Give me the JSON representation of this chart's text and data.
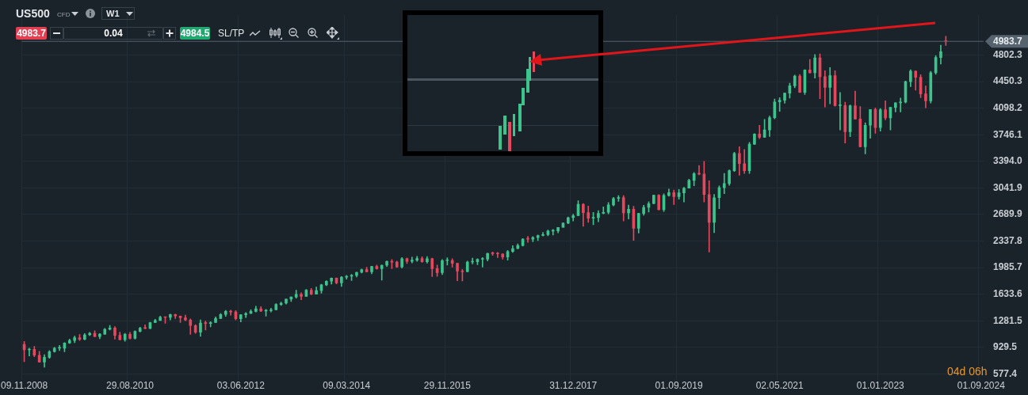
{
  "chart_data": {
    "type": "candlestick",
    "title": "US500",
    "subtitle": "CFD",
    "annotations": [
      "W1",
      "4983.7",
      "0.04",
      "4984.5",
      "SL/TP",
      "04d 06h"
    ],
    "categories": [
      "09.11.2008",
      null,
      null,
      null,
      null,
      null,
      null,
      null,
      null,
      null,
      null,
      null,
      null,
      null,
      null,
      null,
      null,
      null,
      null,
      null,
      null,
      "29.08.2010",
      null,
      null,
      null,
      null,
      null,
      null,
      null,
      null,
      null,
      null,
      null,
      null,
      null,
      null,
      null,
      null,
      null,
      null,
      null,
      null,
      null,
      "03.06.2012",
      null,
      null,
      null,
      null,
      null,
      null,
      null,
      null,
      null,
      null,
      null,
      null,
      null,
      null,
      null,
      null,
      null,
      null,
      null,
      null,
      "09.03.2014",
      null,
      null,
      null,
      null,
      null,
      null,
      null,
      null,
      null,
      null,
      null,
      null,
      null,
      null,
      null,
      null,
      null,
      null,
      null,
      "29.11.2015",
      null,
      null,
      null,
      null,
      null,
      null,
      null,
      null,
      null,
      null,
      null,
      null,
      null,
      null,
      null,
      null,
      null,
      null,
      null,
      null,
      null,
      null,
      null,
      null,
      "31.12.2017",
      null,
      null,
      null,
      null,
      null,
      null,
      null,
      null,
      null,
      null,
      null,
      null,
      null,
      null,
      null,
      null,
      null,
      null,
      null,
      null,
      "01.09.2019",
      null,
      null,
      null,
      null,
      null,
      null,
      null,
      null,
      null,
      null,
      null,
      null,
      null,
      null,
      null,
      null,
      null,
      null,
      null,
      "02.05.2021",
      null,
      null,
      null,
      null,
      null,
      null,
      null,
      null,
      null,
      null,
      null,
      null,
      null,
      null,
      null,
      null,
      null,
      null,
      null,
      "01.01.2023",
      null,
      null,
      null,
      null,
      null,
      null,
      null,
      null,
      null,
      null,
      null,
      null,
      null,
      null,
      null,
      null,
      null,
      null,
      null,
      "01.09.2024"
    ],
    "ohlc": [
      [
        969,
        1007,
        741,
        896
      ],
      [
        896,
        918,
        815,
        903
      ],
      [
        903,
        944,
        805,
        826
      ],
      [
        826,
        876,
        735,
        735
      ],
      [
        735,
        833,
        667,
        798
      ],
      [
        798,
        888,
        784,
        873
      ],
      [
        873,
        930,
        865,
        919
      ],
      [
        919,
        957,
        888,
        919
      ],
      [
        919,
        993,
        870,
        987
      ],
      [
        987,
        1039,
        980,
        1021
      ],
      [
        1021,
        1080,
        991,
        1057
      ],
      [
        1057,
        1101,
        1020,
        1036
      ],
      [
        1036,
        1113,
        1029,
        1096
      ],
      [
        1096,
        1130,
        1086,
        1115
      ],
      [
        1115,
        1150,
        1071,
        1074
      ],
      [
        1074,
        1112,
        1045,
        1104
      ],
      [
        1104,
        1180,
        1101,
        1169
      ],
      [
        1169,
        1220,
        1160,
        1187
      ],
      [
        1187,
        1206,
        1040,
        1089
      ],
      [
        1089,
        1131,
        1029,
        1031
      ],
      [
        1031,
        1115,
        1011,
        1102
      ],
      [
        1102,
        1129,
        1040,
        1049
      ],
      [
        1049,
        1151,
        1040,
        1141
      ],
      [
        1141,
        1196,
        1132,
        1183
      ],
      [
        1183,
        1228,
        1174,
        1181
      ],
      [
        1181,
        1263,
        1174,
        1258
      ],
      [
        1258,
        1302,
        1257,
        1286
      ],
      [
        1286,
        1344,
        1284,
        1327
      ],
      [
        1327,
        1333,
        1249,
        1326
      ],
      [
        1326,
        1370,
        1294,
        1364
      ],
      [
        1364,
        1371,
        1311,
        1345
      ],
      [
        1345,
        1347,
        1259,
        1321
      ],
      [
        1321,
        1357,
        1283,
        1292
      ],
      [
        1292,
        1307,
        1101,
        1219
      ],
      [
        1219,
        1230,
        1114,
        1131
      ],
      [
        1131,
        1293,
        1075,
        1253
      ],
      [
        1253,
        1277,
        1159,
        1247
      ],
      [
        1247,
        1270,
        1202,
        1258
      ],
      [
        1258,
        1334,
        1258,
        1312
      ],
      [
        1312,
        1378,
        1311,
        1366
      ],
      [
        1366,
        1420,
        1340,
        1408
      ],
      [
        1408,
        1422,
        1357,
        1398
      ],
      [
        1398,
        1416,
        1292,
        1310
      ],
      [
        1310,
        1364,
        1267,
        1362
      ],
      [
        1362,
        1392,
        1325,
        1379
      ],
      [
        1379,
        1427,
        1378,
        1407
      ],
      [
        1407,
        1475,
        1397,
        1441
      ],
      [
        1441,
        1470,
        1403,
        1412
      ],
      [
        1412,
        1434,
        1343,
        1416
      ],
      [
        1416,
        1448,
        1398,
        1426
      ],
      [
        1426,
        1510,
        1426,
        1498
      ],
      [
        1498,
        1530,
        1485,
        1515
      ],
      [
        1515,
        1570,
        1502,
        1569
      ],
      [
        1569,
        1598,
        1536,
        1598
      ],
      [
        1598,
        1687,
        1581,
        1631
      ],
      [
        1631,
        1654,
        1560,
        1606
      ],
      [
        1606,
        1698,
        1605,
        1686
      ],
      [
        1686,
        1710,
        1627,
        1633
      ],
      [
        1633,
        1730,
        1633,
        1682
      ],
      [
        1682,
        1765,
        1646,
        1757
      ],
      [
        1757,
        1814,
        1747,
        1806
      ],
      [
        1806,
        1849,
        1768,
        1848
      ],
      [
        1848,
        1851,
        1770,
        1783
      ],
      [
        1783,
        1868,
        1737,
        1859
      ],
      [
        1859,
        1884,
        1834,
        1872
      ],
      [
        1872,
        1898,
        1815,
        1884
      ],
      [
        1884,
        1925,
        1863,
        1924
      ],
      [
        1924,
        1969,
        1915,
        1960
      ],
      [
        1960,
        1991,
        1930,
        1931
      ],
      [
        1931,
        2005,
        1905,
        2003
      ],
      [
        2003,
        2019,
        1964,
        1972
      ],
      [
        1972,
        2019,
        1821,
        2018
      ],
      [
        2018,
        2076,
        2001,
        2068
      ],
      [
        2068,
        2094,
        1972,
        2059
      ],
      [
        2059,
        2072,
        1988,
        1995
      ],
      [
        1995,
        2120,
        1981,
        2105
      ],
      [
        2105,
        2114,
        2040,
        2068
      ],
      [
        2068,
        2126,
        2048,
        2086
      ],
      [
        2086,
        2135,
        2068,
        2107
      ],
      [
        2107,
        2130,
        2056,
        2063
      ],
      [
        2063,
        2133,
        2045,
        2104
      ],
      [
        2104,
        2112,
        1867,
        1972
      ],
      [
        1972,
        2021,
        1871,
        1920
      ],
      [
        1920,
        2094,
        1893,
        2079
      ],
      [
        2079,
        2117,
        2020,
        2080
      ],
      [
        2080,
        2105,
        1993,
        2044
      ],
      [
        2044,
        2044,
        1812,
        1940
      ],
      [
        1940,
        1963,
        1810,
        1932
      ],
      [
        1932,
        2073,
        1931,
        2060
      ],
      [
        2060,
        2111,
        2034,
        2065
      ],
      [
        2065,
        2103,
        2025,
        2097
      ],
      [
        2097,
        2121,
        1992,
        2099
      ],
      [
        2099,
        2178,
        2075,
        2174
      ],
      [
        2174,
        2194,
        2148,
        2171
      ],
      [
        2171,
        2188,
        2120,
        2168
      ],
      [
        2168,
        2169,
        2097,
        2126
      ],
      [
        2126,
        2214,
        2084,
        2199
      ],
      [
        2199,
        2278,
        2187,
        2239
      ],
      [
        2239,
        2301,
        2234,
        2279
      ],
      [
        2279,
        2371,
        2271,
        2364
      ],
      [
        2364,
        2401,
        2322,
        2363
      ],
      [
        2363,
        2398,
        2329,
        2384
      ],
      [
        2384,
        2418,
        2344,
        2412
      ],
      [
        2412,
        2454,
        2405,
        2423
      ],
      [
        2423,
        2484,
        2407,
        2470
      ],
      [
        2470,
        2491,
        2417,
        2472
      ],
      [
        2472,
        2519,
        2446,
        2519
      ],
      [
        2519,
        2582,
        2519,
        2575
      ],
      [
        2575,
        2657,
        2566,
        2648
      ],
      [
        2648,
        2694,
        2605,
        2674
      ],
      [
        2674,
        2873,
        2674,
        2824
      ],
      [
        2824,
        2835,
        2533,
        2714
      ],
      [
        2714,
        2801,
        2586,
        2641
      ],
      [
        2641,
        2718,
        2553,
        2648
      ],
      [
        2648,
        2742,
        2594,
        2705
      ],
      [
        2705,
        2791,
        2698,
        2718
      ],
      [
        2718,
        2848,
        2698,
        2816
      ],
      [
        2816,
        2916,
        2803,
        2902
      ],
      [
        2902,
        2941,
        2864,
        2914
      ],
      [
        2914,
        2940,
        2603,
        2712
      ],
      [
        2712,
        2815,
        2631,
        2760
      ],
      [
        2760,
        2800,
        2347,
        2507
      ],
      [
        2507,
        2708,
        2444,
        2704
      ],
      [
        2704,
        2813,
        2681,
        2784
      ],
      [
        2784,
        2860,
        2722,
        2834
      ],
      [
        2834,
        2949,
        2831,
        2946
      ],
      [
        2946,
        2954,
        2751,
        2752
      ],
      [
        2752,
        2964,
        2729,
        2942
      ],
      [
        2942,
        3028,
        2932,
        2980
      ],
      [
        2980,
        3013,
        2822,
        2926
      ],
      [
        2926,
        3022,
        2892,
        2977
      ],
      [
        2977,
        3050,
        2855,
        3038
      ],
      [
        3038,
        3157,
        3038,
        3141
      ],
      [
        3141,
        3248,
        3070,
        3231
      ],
      [
        3231,
        3338,
        3214,
        3226
      ],
      [
        3226,
        3394,
        2855,
        2954
      ],
      [
        2954,
        3137,
        2192,
        2585
      ],
      [
        2585,
        2955,
        2448,
        2912
      ],
      [
        2912,
        3068,
        2767,
        3044
      ],
      [
        3044,
        3233,
        2966,
        3100
      ],
      [
        3100,
        3280,
        3077,
        3271
      ],
      [
        3271,
        3515,
        3260,
        3500
      ],
      [
        3500,
        3588,
        3210,
        3363
      ],
      [
        3363,
        3550,
        3234,
        3270
      ],
      [
        3270,
        3646,
        3234,
        3622
      ],
      [
        3622,
        3760,
        3617,
        3756
      ],
      [
        3756,
        3870,
        3694,
        3714
      ],
      [
        3714,
        3951,
        3710,
        3811
      ],
      [
        3811,
        3995,
        3723,
        3973
      ],
      [
        3973,
        4219,
        3956,
        4181
      ],
      [
        4181,
        4238,
        4057,
        4204
      ],
      [
        4204,
        4302,
        4165,
        4298
      ],
      [
        4298,
        4429,
        4233,
        4395
      ],
      [
        4395,
        4538,
        4367,
        4523
      ],
      [
        4523,
        4546,
        4306,
        4308
      ],
      [
        4308,
        4608,
        4279,
        4605
      ],
      [
        4605,
        4744,
        4561,
        4567
      ],
      [
        4567,
        4809,
        4496,
        4766
      ],
      [
        4766,
        4818,
        4223,
        4516
      ],
      [
        4516,
        4595,
        4115,
        4374
      ],
      [
        4374,
        4637,
        4157,
        4530
      ],
      [
        4530,
        4594,
        4125,
        4132
      ],
      [
        4132,
        4307,
        3811,
        4132
      ],
      [
        4132,
        4177,
        3637,
        3785
      ],
      [
        3785,
        4140,
        3721,
        4130
      ],
      [
        4130,
        4325,
        3955,
        3955
      ],
      [
        3955,
        4120,
        3585,
        3586
      ],
      [
        3586,
        3905,
        3492,
        3872
      ],
      [
        3872,
        4080,
        3699,
        4080
      ],
      [
        4080,
        4101,
        3764,
        3840
      ],
      [
        3840,
        4095,
        3795,
        4077
      ],
      [
        4077,
        4195,
        3943,
        3970
      ],
      [
        3970,
        4110,
        3809,
        4109
      ],
      [
        4109,
        4170,
        4049,
        4169
      ],
      [
        4169,
        4232,
        4048,
        4180
      ],
      [
        4180,
        4458,
        4166,
        4450
      ],
      [
        4450,
        4607,
        4385,
        4589
      ],
      [
        4589,
        4593,
        4336,
        4508
      ],
      [
        4508,
        4541,
        4238,
        4288
      ],
      [
        4288,
        4393,
        4104,
        4194
      ],
      [
        4194,
        4587,
        4167,
        4568
      ],
      [
        4568,
        4793,
        4546,
        4770
      ],
      [
        4770,
        4932,
        4683,
        4846
      ],
      [
        4990,
        5050,
        4930,
        4983.7
      ],
      null,
      null,
      null,
      null,
      null,
      null,
      null
    ],
    "ylim": [
      500,
      5330
    ],
    "yticks": [
      577.4,
      929.5,
      1281.5,
      1633.6,
      1985.7,
      2337.8,
      2689.9,
      3041.9,
      {
        "value": 3394,
        "label": "3394.0"
      },
      3746.1,
      4098.2,
      4450.3,
      4802.3
    ],
    "ref_lines": [
      {
        "axis": "y",
        "value": 4983.7,
        "label": "4983.7",
        "color": "#56636e"
      }
    ],
    "grid": true
  }
}
